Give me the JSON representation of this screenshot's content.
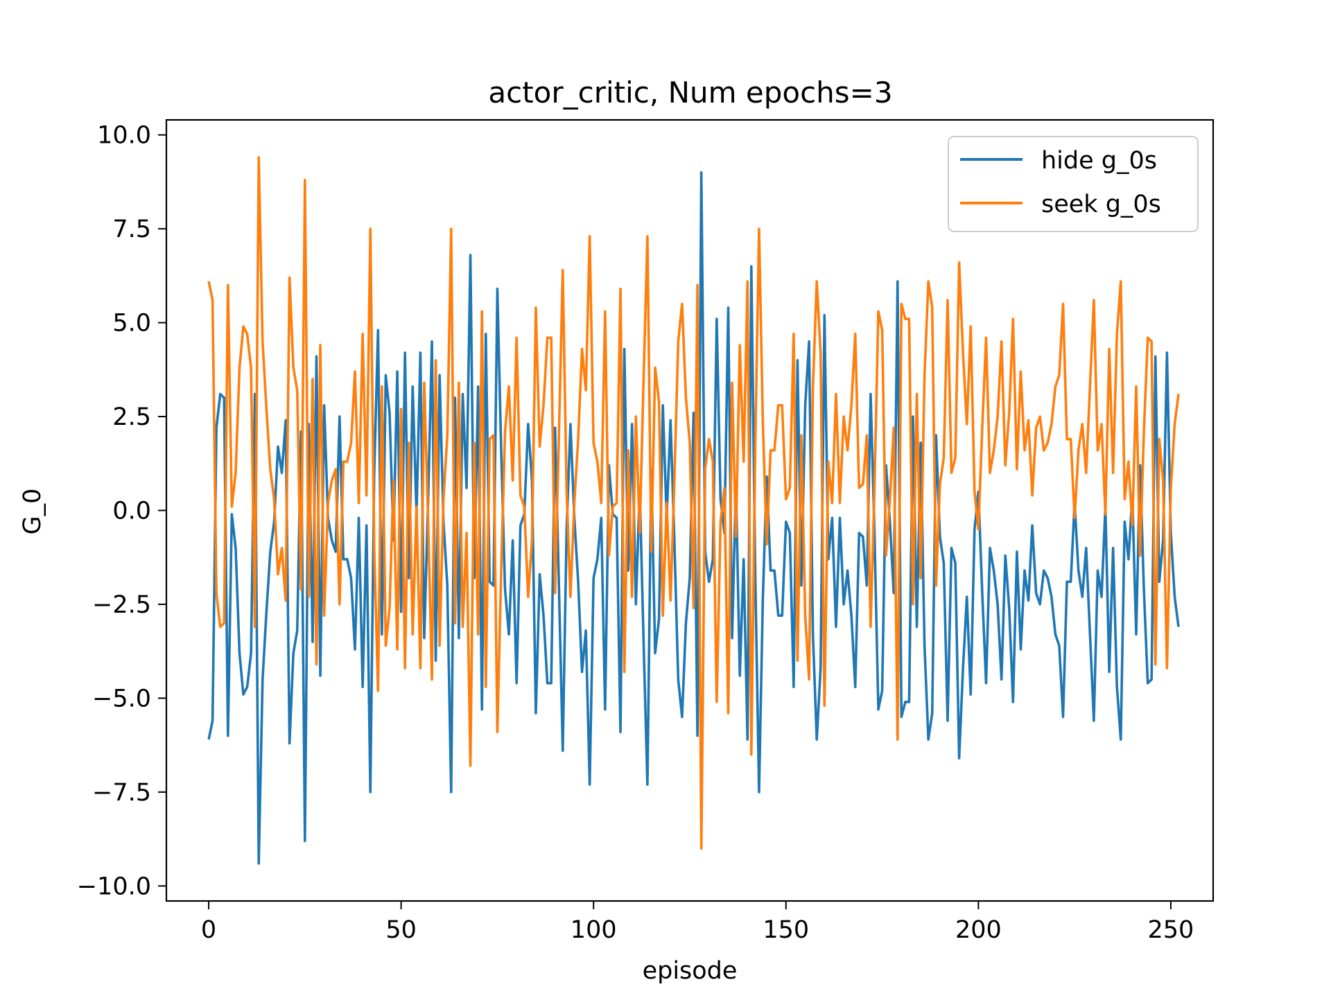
{
  "chart_data": {
    "type": "line",
    "title": "actor_critic, Num epochs=3",
    "xlabel": "episode",
    "ylabel": "G_0",
    "xlim": [
      -11,
      261
    ],
    "ylim": [
      -10.4,
      10.4
    ],
    "xticks": [
      0,
      50,
      100,
      150,
      200,
      250
    ],
    "yticks": [
      10.0,
      7.5,
      5.0,
      2.5,
      0.0,
      -2.5,
      -5.0,
      -7.5,
      -10.0
    ],
    "ytick_labels": [
      "10.0",
      "7.5",
      "5.0",
      "2.5",
      "0.0",
      "−2.5",
      "−5.0",
      "−7.5",
      "−10.0"
    ],
    "grid": false,
    "legend_position": "top-right",
    "seek_is_negation_of_hide": true,
    "series": [
      {
        "name": "hide g_0s",
        "color": "#1f77b4",
        "values": [
          -6.1,
          -5.6,
          2.2,
          3.1,
          3.0,
          -6.0,
          -0.1,
          -1.0,
          -3.8,
          -4.9,
          -4.7,
          -3.8,
          3.1,
          -9.4,
          -4.5,
          -2.7,
          -1.1,
          -0.3,
          1.7,
          1.0,
          2.4,
          -6.2,
          -3.8,
          -3.2,
          2.1,
          -8.8,
          2.3,
          -3.5,
          4.1,
          -4.4,
          2.8,
          -0.2,
          -0.8,
          -1.1,
          2.5,
          -1.3,
          -1.3,
          -1.8,
          -3.7,
          -0.2,
          -4.7,
          -0.4,
          -7.5,
          1.0,
          4.8,
          -3.3,
          3.6,
          2.6,
          -0.8,
          3.7,
          -2.7,
          4.2,
          -1.8,
          3.3,
          -0.1,
          4.2,
          -3.4,
          0.2,
          4.5,
          -4.0,
          3.6,
          -0.3,
          -2.0,
          -7.5,
          3.0,
          -3.4,
          3.1,
          0.6,
          6.8,
          -1.8,
          3.3,
          -5.3,
          4.7,
          -1.9,
          -2.0,
          5.9,
          1.6,
          -2.1,
          -3.3,
          -0.8,
          -4.6,
          -0.4,
          -0.1,
          2.3,
          0.8,
          -5.4,
          -1.7,
          -2.8,
          -4.6,
          -4.6,
          2.2,
          -2.0,
          -6.4,
          -0.5,
          2.3,
          -0.2,
          -1.9,
          -4.3,
          -3.2,
          -7.3,
          -1.8,
          -1.3,
          -0.2,
          -5.3,
          1.2,
          -0.1,
          -0.2,
          -5.9,
          4.3,
          -1.6,
          2.3,
          -2.5,
          0.6,
          -3.5,
          -7.3,
          1.1,
          -3.8,
          -2.9,
          2.8,
          -0.2,
          2.4,
          -0.8,
          -4.5,
          -5.5,
          -3.0,
          -1.8,
          2.6,
          -6.0,
          9.0,
          -1.1,
          -1.9,
          -1.3,
          5.1,
          0.3,
          -0.6,
          5.4,
          -3.4,
          0.7,
          -4.4,
          -1.3,
          -6.1,
          6.5,
          -1.6,
          -7.5,
          -2.3,
          0.9,
          -1.6,
          -1.6,
          -2.8,
          -2.8,
          -0.3,
          -0.6,
          -4.7,
          4.0,
          -2.0,
          2.8,
          4.5,
          -3.3,
          -6.1,
          -4.2,
          5.2,
          -1.3,
          -0.2,
          -3.1,
          -0.2,
          -2.5,
          -1.6,
          -2.8,
          -4.7,
          -0.6,
          -0.7,
          -2.0,
          3.1,
          -0.6,
          -5.3,
          -4.8,
          1.2,
          -0.3,
          -2.2,
          6.1,
          -5.5,
          -5.1,
          -5.1,
          2.5,
          -3.1,
          1.8,
          -3.6,
          -6.1,
          -5.4,
          2.0,
          -0.7,
          -1.4,
          -5.6,
          -1.0,
          -1.4,
          -6.6,
          -4.2,
          -2.3,
          -4.9,
          -0.5,
          0.5,
          -2.2,
          -4.6,
          -1.0,
          -1.6,
          -2.5,
          -4.5,
          -1.2,
          -2.6,
          -5.1,
          -1.1,
          -3.7,
          -1.6,
          -2.4,
          -0.4,
          -2.2,
          -2.5,
          -1.6,
          -1.8,
          -2.3,
          -3.3,
          -3.6,
          -5.5,
          -1.9,
          -1.9,
          0.2,
          -1.6,
          -2.3,
          -1.0,
          -3.3,
          -5.6,
          -1.6,
          -2.3,
          0.1,
          -4.3,
          -1.0,
          -4.7,
          -6.1,
          -0.3,
          -1.3,
          0.4,
          -3.3,
          1.2,
          -2.1,
          -4.6,
          -4.5,
          4.1,
          -1.9,
          -0.8,
          4.2,
          -0.6,
          -2.3,
          -3.1
        ]
      },
      {
        "name": "seek g_0s",
        "color": "#ff7f0e",
        "values": [
          6.1,
          5.6,
          -2.2,
          -3.1,
          -3.0,
          6.0,
          0.1,
          1.0,
          3.8,
          4.9,
          4.7,
          3.8,
          -3.1,
          9.4,
          4.5,
          2.7,
          1.1,
          0.3,
          -1.7,
          -1.0,
          -2.4,
          6.2,
          3.8,
          3.2,
          -2.1,
          8.8,
          -2.3,
          3.5,
          -4.1,
          4.4,
          -2.8,
          0.2,
          0.8,
          1.1,
          -2.5,
          1.3,
          1.3,
          1.8,
          3.7,
          0.2,
          4.7,
          0.4,
          7.5,
          -1.0,
          -4.8,
          3.3,
          -3.6,
          -2.6,
          0.8,
          -3.7,
          2.7,
          -4.2,
          1.8,
          -3.3,
          0.1,
          -4.2,
          3.4,
          -0.2,
          -4.5,
          4.0,
          -3.6,
          0.3,
          2.0,
          7.5,
          -3.0,
          3.4,
          -3.1,
          -0.6,
          -6.8,
          1.8,
          -3.3,
          5.3,
          -4.7,
          1.9,
          2.0,
          -5.9,
          -1.6,
          2.1,
          3.3,
          0.8,
          4.6,
          0.4,
          0.1,
          -2.3,
          -0.8,
          5.4,
          1.7,
          2.8,
          4.6,
          4.6,
          -2.2,
          2.0,
          6.4,
          0.5,
          -2.3,
          0.2,
          1.9,
          4.3,
          3.2,
          7.3,
          1.8,
          1.3,
          0.2,
          5.3,
          -1.2,
          0.1,
          0.2,
          5.9,
          -4.3,
          1.6,
          -2.3,
          2.5,
          -0.6,
          3.5,
          7.3,
          -1.1,
          3.8,
          2.9,
          -2.8,
          0.2,
          -2.4,
          0.8,
          4.5,
          5.5,
          3.0,
          1.8,
          -2.6,
          6.0,
          -9.0,
          1.1,
          1.9,
          1.3,
          -5.1,
          -0.3,
          0.6,
          -5.4,
          3.4,
          -0.7,
          4.4,
          1.3,
          6.1,
          -6.5,
          1.6,
          7.5,
          2.3,
          -0.9,
          1.6,
          1.6,
          2.8,
          2.8,
          0.3,
          0.6,
          4.7,
          -4.0,
          2.0,
          -2.8,
          -4.5,
          3.3,
          6.1,
          4.2,
          -5.2,
          1.3,
          0.2,
          3.1,
          0.2,
          2.5,
          1.6,
          2.8,
          4.7,
          0.6,
          0.7,
          2.0,
          -3.1,
          0.6,
          5.3,
          4.8,
          -1.2,
          0.3,
          2.2,
          -6.1,
          5.5,
          5.1,
          5.1,
          -2.5,
          3.1,
          -1.8,
          3.6,
          6.1,
          5.4,
          -2.0,
          0.7,
          1.4,
          5.6,
          1.0,
          1.4,
          6.6,
          4.2,
          2.3,
          4.9,
          0.5,
          -0.5,
          2.2,
          4.6,
          1.0,
          1.6,
          2.5,
          4.5,
          1.2,
          2.6,
          5.1,
          1.1,
          3.7,
          1.6,
          2.4,
          0.4,
          2.2,
          2.5,
          1.6,
          1.8,
          2.3,
          3.3,
          3.6,
          5.5,
          1.9,
          1.9,
          -0.2,
          1.6,
          2.3,
          1.0,
          3.3,
          5.6,
          1.6,
          2.3,
          -0.1,
          4.3,
          1.0,
          4.7,
          6.1,
          0.3,
          1.3,
          -0.4,
          3.3,
          -1.2,
          2.1,
          4.6,
          4.5,
          -4.1,
          1.9,
          0.8,
          -4.2,
          0.6,
          2.3,
          3.1
        ]
      }
    ]
  }
}
